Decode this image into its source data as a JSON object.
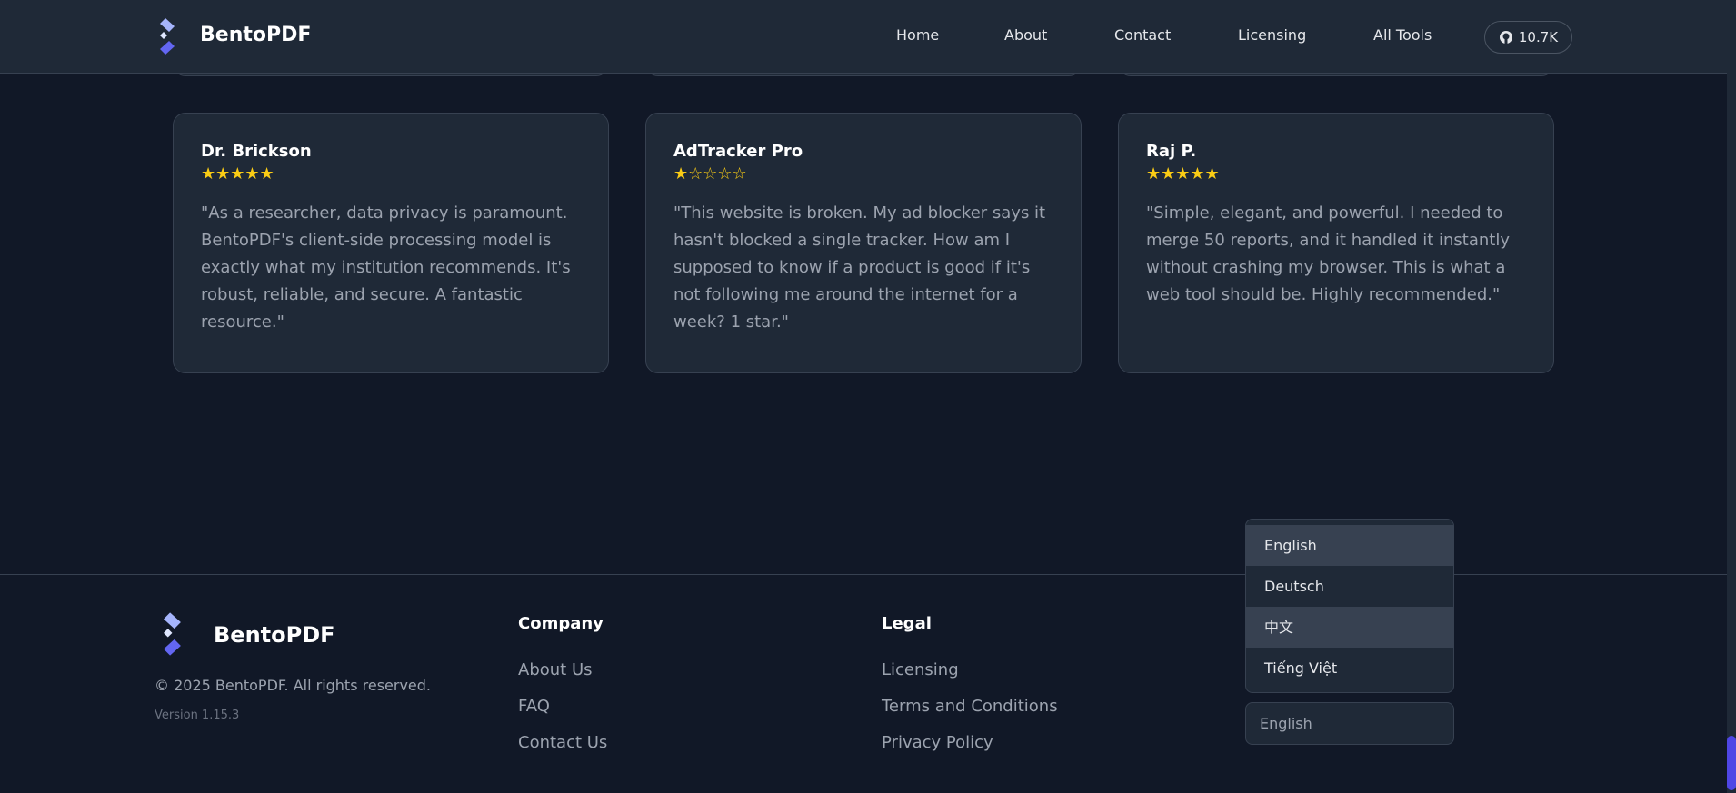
{
  "header": {
    "brand": "BentoPDF",
    "nav": [
      "Home",
      "About",
      "Contact",
      "Licensing",
      "All Tools"
    ],
    "github_stars": "10.7K"
  },
  "testimonials": [
    {
      "name": "Dr. Brickson",
      "rating": 5,
      "stars": "★★★★★",
      "text": "\"As a researcher, data privacy is paramount. BentoPDF's client-side processing model is exactly what my institution recommends. It's robust, reliable, and secure. A fantastic resource.\""
    },
    {
      "name": "AdTracker Pro",
      "rating": 1,
      "stars": "★☆☆☆☆",
      "text": "\"This website is broken. My ad blocker says it hasn't blocked a single tracker. How am I supposed to know if a product is good if it's not following me around the internet for a week? 1 star.\""
    },
    {
      "name": "Raj P.",
      "rating": 5,
      "stars": "★★★★★",
      "text": "\"Simple, elegant, and powerful. I needed to merge 50 reports, and it handled it instantly without crashing my browser. This is what a web tool should be. Highly recommended.\""
    }
  ],
  "footer": {
    "brand": "BentoPDF",
    "copyright": "© 2025 BentoPDF. All rights reserved.",
    "version": "Version 1.15.3",
    "company": {
      "heading": "Company",
      "links": [
        "About Us",
        "FAQ",
        "Contact Us"
      ]
    },
    "legal": {
      "heading": "Legal",
      "links": [
        "Licensing",
        "Terms and Conditions",
        "Privacy Policy"
      ]
    }
  },
  "language": {
    "options": [
      "English",
      "Deutsch",
      "中文",
      "Tiếng Việt"
    ],
    "selected": "English"
  },
  "colors": {
    "accent": "#4f46e5",
    "star": "#facc15",
    "bg": "#111827",
    "card": "#1f2937"
  }
}
